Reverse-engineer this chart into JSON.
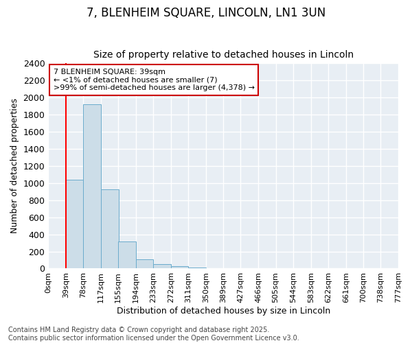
{
  "title1": "7, BLENHEIM SQUARE, LINCOLN, LN1 3UN",
  "title2": "Size of property relative to detached houses in Lincoln",
  "xlabel": "Distribution of detached houses by size in Lincoln",
  "ylabel": "Number of detached properties",
  "bar_values": [
    7,
    1040,
    1920,
    930,
    320,
    110,
    55,
    25,
    10,
    0,
    0,
    0,
    0,
    0,
    0,
    0,
    0,
    0,
    0,
    0
  ],
  "bin_edges": [
    0,
    39,
    78,
    117,
    155,
    194,
    233,
    272,
    311,
    350,
    389,
    427,
    466,
    505,
    544,
    583,
    622,
    661,
    700,
    738,
    777
  ],
  "tick_labels": [
    "0sqm",
    "39sqm",
    "78sqm",
    "117sqm",
    "155sqm",
    "194sqm",
    "233sqm",
    "272sqm",
    "311sqm",
    "350sqm",
    "389sqm",
    "427sqm",
    "466sqm",
    "505sqm",
    "544sqm",
    "583sqm",
    "622sqm",
    "661sqm",
    "700sqm",
    "738sqm",
    "777sqm"
  ],
  "bar_color": "#ccdde8",
  "bar_edgecolor": "#6aabcc",
  "red_line_x": 39,
  "ylim": [
    0,
    2400
  ],
  "yticks": [
    0,
    200,
    400,
    600,
    800,
    1000,
    1200,
    1400,
    1600,
    1800,
    2000,
    2200,
    2400
  ],
  "annotation_title": "7 BLENHEIM SQUARE: 39sqm",
  "annotation_line1": "← <1% of detached houses are smaller (7)",
  "annotation_line2": ">99% of semi-detached houses are larger (4,378) →",
  "annotation_box_facecolor": "#ffffff",
  "annotation_box_edgecolor": "#cc0000",
  "footer": "Contains HM Land Registry data © Crown copyright and database right 2025.\nContains public sector information licensed under the Open Government Licence v3.0.",
  "fig_background": "#ffffff",
  "plot_background": "#e8eef4",
  "grid_color": "#ffffff",
  "title1_fontsize": 12,
  "title2_fontsize": 10,
  "xlabel_fontsize": 9,
  "ylabel_fontsize": 9,
  "ytick_fontsize": 9,
  "xtick_fontsize": 8,
  "footer_fontsize": 7,
  "annotation_fontsize": 8
}
